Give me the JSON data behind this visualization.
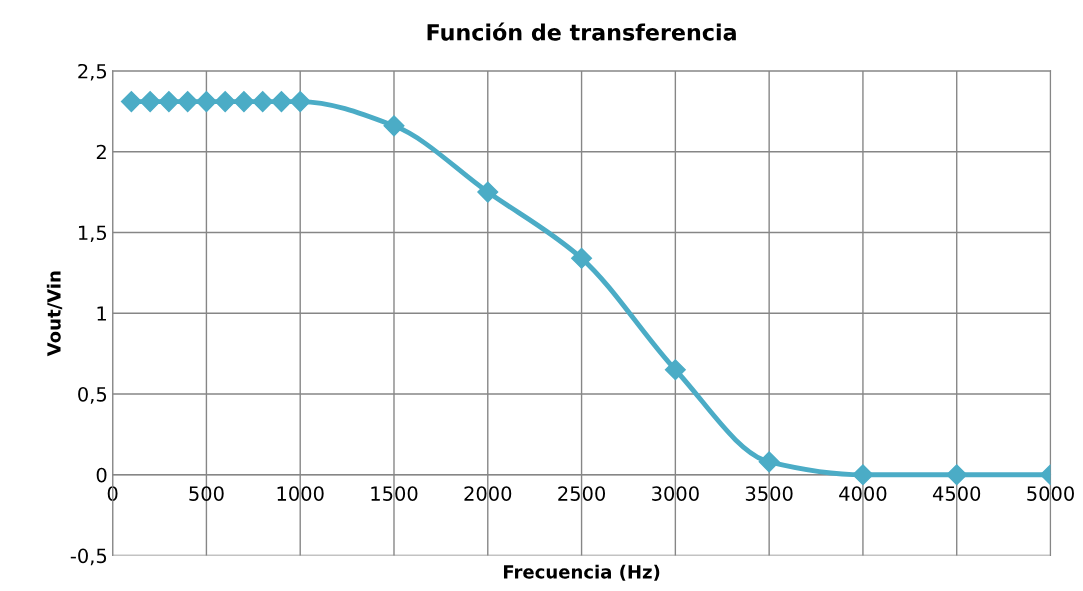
{
  "chart_data": {
    "type": "line",
    "title": "Función de transferencia",
    "xlabel": "Frecuencia (Hz)",
    "ylabel": "Vout/Vin",
    "x": [
      100,
      200,
      300,
      400,
      500,
      600,
      700,
      800,
      900,
      1000,
      1500,
      2000,
      2500,
      3000,
      3500,
      4000,
      4500,
      5000
    ],
    "series": [
      {
        "color": "#4bacc6",
        "values": [
          2.31,
          2.31,
          2.31,
          2.31,
          2.31,
          2.31,
          2.31,
          2.31,
          2.31,
          2.31,
          2.16,
          1.75,
          1.34,
          0.65,
          0.08,
          0,
          0,
          0
        ]
      }
    ],
    "xlim": [
      0,
      5000
    ],
    "xticks": [
      0,
      500,
      1000,
      1500,
      2000,
      2500,
      3000,
      3500,
      4000,
      4500,
      5000
    ],
    "ylim": [
      -0.5,
      2.5
    ],
    "yticks": [
      {
        "value": -0.5,
        "label": "-0,5"
      },
      0,
      {
        "value": 0.5,
        "label": "0,5"
      },
      1,
      {
        "value": 1.5,
        "label": "1,5"
      },
      2,
      {
        "value": 2.5,
        "label": "2,5"
      }
    ],
    "grid": true,
    "marker": "diamond",
    "line_style": "solid",
    "legend": false
  }
}
